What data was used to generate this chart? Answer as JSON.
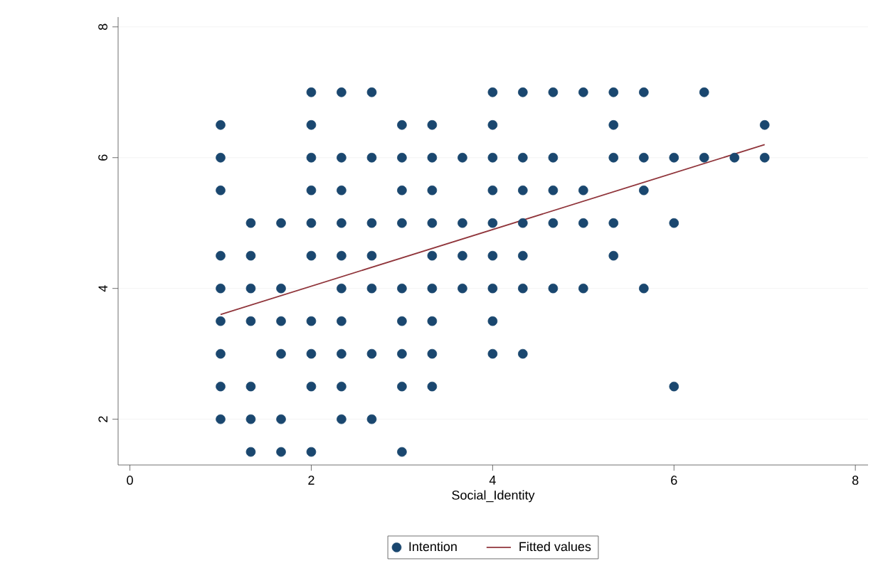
{
  "chart_data": {
    "type": "scatter",
    "xlabel": "Social_Identity",
    "xlim": [
      -0.13,
      8.14
    ],
    "ylim": [
      1.3,
      8.15
    ],
    "xticks": [
      0,
      2,
      4,
      6,
      8
    ],
    "yticks": [
      2,
      4,
      6,
      8
    ],
    "grid": "y",
    "legend": "bottom",
    "series": [
      {
        "name": "Intention",
        "type": "scatter",
        "color": "#1a476f",
        "marker": "circle",
        "x": [
          1,
          1,
          1,
          1,
          1,
          1,
          1,
          1,
          1,
          1.333,
          1.333,
          1.333,
          1.333,
          1.333,
          1.333,
          1.333,
          1.667,
          1.667,
          1.667,
          1.667,
          1.667,
          1.667,
          2,
          2,
          2,
          2,
          2,
          2,
          2,
          2,
          2,
          2,
          2.333,
          2.333,
          2.333,
          2.333,
          2.333,
          2.333,
          2.333,
          2.333,
          2.333,
          2.333,
          2.667,
          2.667,
          2.667,
          2.667,
          2.667,
          2.667,
          2.667,
          3,
          3,
          3,
          3,
          3,
          3,
          3,
          3,
          3,
          3.333,
          3.333,
          3.333,
          3.333,
          3.333,
          3.333,
          3.333,
          3.333,
          3.333,
          3.667,
          3.667,
          3.667,
          3.667,
          4,
          4,
          4,
          4,
          4,
          4,
          4,
          4,
          4,
          4.333,
          4.333,
          4.333,
          4.333,
          4.333,
          4.333,
          4.333,
          4.667,
          4.667,
          4.667,
          4.667,
          4.667,
          5,
          5,
          5,
          5,
          5.333,
          5.333,
          5.333,
          5.333,
          5.333,
          5.667,
          5.667,
          5.667,
          5.667,
          6,
          6,
          6,
          6.333,
          6.333,
          6.667,
          7,
          7
        ],
        "values": [
          6.5,
          6,
          5.5,
          4.5,
          4,
          3.5,
          3,
          2.5,
          2,
          5,
          4.5,
          4,
          3.5,
          2.5,
          2,
          1.5,
          5,
          4,
          3.5,
          3,
          2,
          1.5,
          7,
          6.5,
          6,
          5.5,
          5,
          4.5,
          3.5,
          3,
          2.5,
          1.5,
          7,
          6,
          5.5,
          5,
          4.5,
          4,
          3.5,
          3,
          2.5,
          2,
          7,
          6,
          5,
          4.5,
          4,
          3,
          2,
          6.5,
          6,
          5.5,
          5,
          4,
          3.5,
          3,
          2.5,
          1.5,
          6.5,
          6,
          5.5,
          5,
          4.5,
          4,
          3.5,
          3,
          2.5,
          6,
          5,
          4.5,
          4,
          7,
          6.5,
          6,
          5.5,
          5,
          4.5,
          4,
          3.5,
          3,
          7,
          6,
          5.5,
          5,
          4.5,
          4,
          3,
          7,
          6,
          5.5,
          5,
          4,
          7,
          5.5,
          5,
          4,
          7,
          6.5,
          6,
          5,
          4.5,
          7,
          6,
          5.5,
          4,
          6,
          5,
          2.5,
          7,
          6,
          6,
          6.5,
          6
        ]
      },
      {
        "name": "Fitted values",
        "type": "line",
        "color": "#90353b",
        "line_style": "solid",
        "marker": "none",
        "x": [
          1,
          7
        ],
        "values": [
          3.6,
          6.2
        ]
      }
    ]
  }
}
